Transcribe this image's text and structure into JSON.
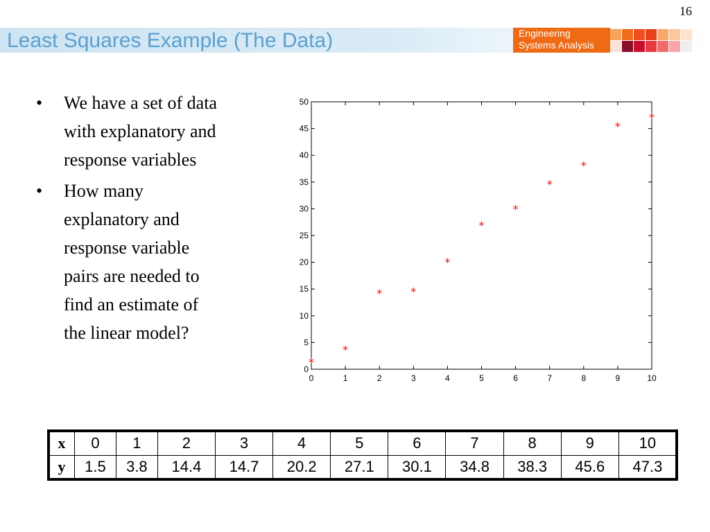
{
  "slide_number": "16",
  "title": "Least Squares Example (The Data)",
  "brand": {
    "line1": "Engineering",
    "line2": "Systems Analysis"
  },
  "bullets": [
    {
      "symbol": "•",
      "text": "We have a set of data\nwith explanatory and\nresponse variables"
    },
    {
      "symbol": "•",
      "text": "How many\nexplanatory and\nresponse variable\npairs are needed to\nfind an estimate of\nthe linear model?"
    }
  ],
  "chart_data": {
    "type": "scatter",
    "x": [
      0,
      1,
      2,
      3,
      4,
      5,
      6,
      7,
      8,
      9,
      10
    ],
    "y": [
      1.5,
      3.8,
      14.4,
      14.7,
      20.2,
      27.1,
      30.1,
      34.8,
      38.3,
      45.6,
      47.3
    ],
    "xlim": [
      0,
      10
    ],
    "ylim": [
      0,
      50
    ],
    "xticks": [
      0,
      1,
      2,
      3,
      4,
      5,
      6,
      7,
      8,
      9,
      10
    ],
    "yticks": [
      0,
      5,
      10,
      15,
      20,
      25,
      30,
      35,
      40,
      45,
      50
    ],
    "marker": "*",
    "marker_color": "#ff0000",
    "grid": false
  },
  "table": {
    "rows": [
      {
        "label": "x",
        "values": [
          "0",
          "1",
          "2",
          "3",
          "4",
          "5",
          "6",
          "7",
          "8",
          "9",
          "10"
        ]
      },
      {
        "label": "y",
        "values": [
          "1.5",
          "3.8",
          "14.4",
          "14.7",
          "20.2",
          "27.1",
          "30.1",
          "34.8",
          "38.3",
          "45.6",
          "47.3"
        ]
      }
    ]
  }
}
